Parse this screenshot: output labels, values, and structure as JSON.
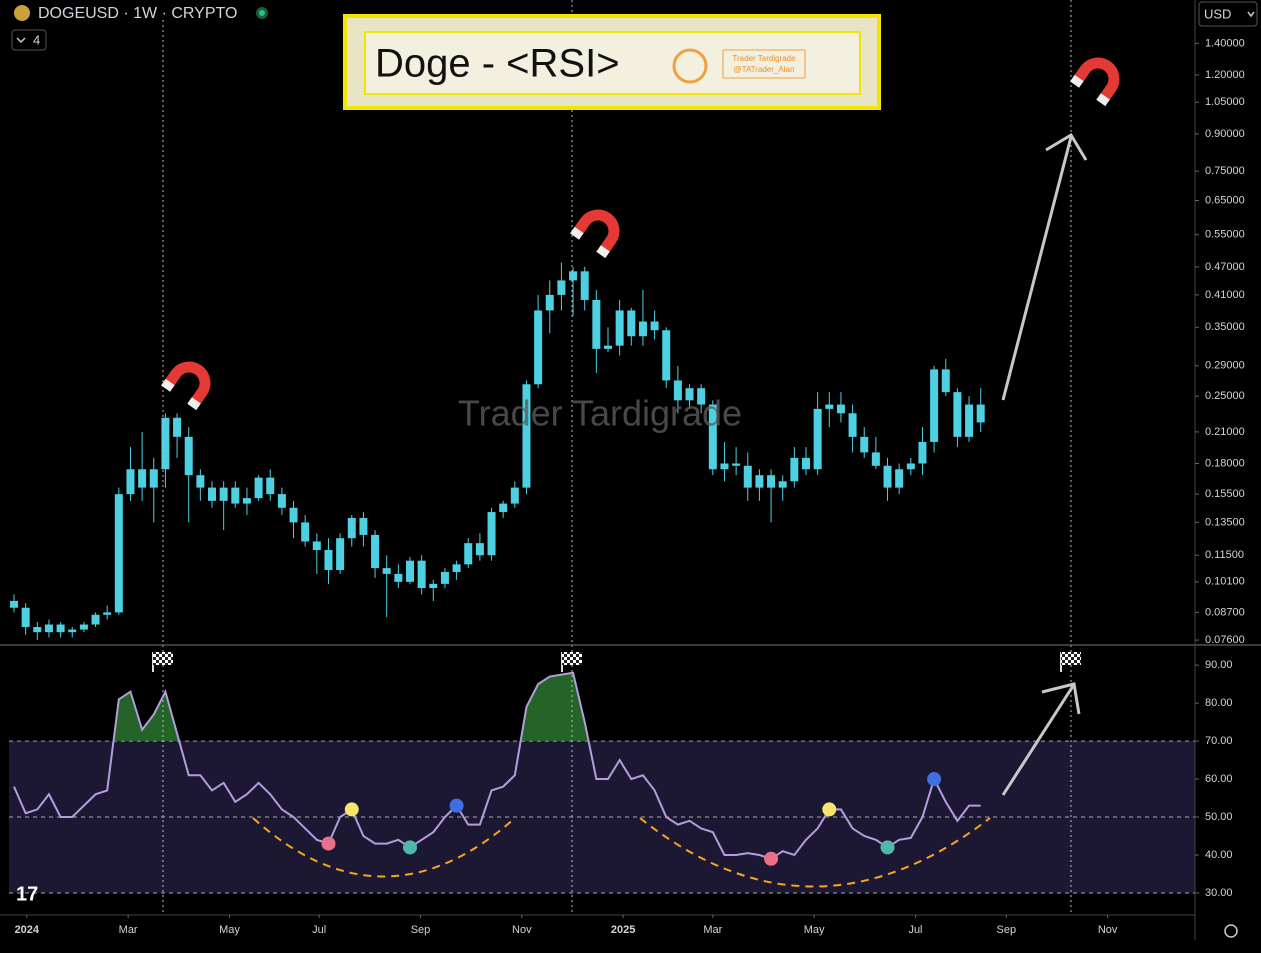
{
  "header": {
    "symbol": "DOGEUSD · 1W · CRYPTO",
    "indicator_count": 4,
    "currency": "USD"
  },
  "banner": {
    "title": "Doge - <RSI>",
    "badge_line1": "Trader Tardigrade",
    "badge_line2": "@TATrader_Alan"
  },
  "watermark": "Trader Tardigrade",
  "chart_data": [
    {
      "type": "candlestick",
      "log_scale": true,
      "color": "#4dd0e1",
      "xlim": [
        -0.43,
        101.4
      ],
      "ylim": [
        0.0742,
        1.73
      ],
      "yticks": [
        {
          "value": 1.4,
          "label": "1.40000"
        },
        {
          "value": 1.2,
          "label": "1.20000"
        },
        {
          "value": 1.05,
          "label": "1.05000"
        },
        {
          "value": 0.9,
          "label": "0.90000"
        },
        {
          "value": 0.75,
          "label": "0.75000"
        },
        {
          "value": 0.65,
          "label": "0.65000"
        },
        {
          "value": 0.55,
          "label": "0.55000"
        },
        {
          "value": 0.47,
          "label": "0.47000"
        },
        {
          "value": 0.41,
          "label": "0.41000"
        },
        {
          "value": 0.35,
          "label": "0.35000"
        },
        {
          "value": 0.29,
          "label": "0.29000"
        },
        {
          "value": 0.25,
          "label": "0.25000"
        },
        {
          "value": 0.21,
          "label": "0.21000"
        },
        {
          "value": 0.18,
          "label": "0.18000"
        },
        {
          "value": 0.155,
          "label": "0.15500"
        },
        {
          "value": 0.135,
          "label": "0.13500"
        },
        {
          "value": 0.115,
          "label": "0.11500"
        },
        {
          "value": 0.101,
          "label": "0.10100"
        },
        {
          "value": 0.087,
          "label": "0.08700"
        },
        {
          "value": 0.076,
          "label": "0.07600"
        }
      ],
      "open": [
        0.092,
        0.089,
        0.081,
        0.079,
        0.082,
        0.079,
        0.08,
        0.082,
        0.086,
        0.087,
        0.155,
        0.175,
        0.16,
        0.175,
        0.225,
        0.205,
        0.17,
        0.16,
        0.15,
        0.16,
        0.148,
        0.152,
        0.168,
        0.155,
        0.145,
        0.135,
        0.123,
        0.118,
        0.107,
        0.125,
        0.138,
        0.127,
        0.108,
        0.105,
        0.101,
        0.112,
        0.098,
        0.1,
        0.106,
        0.11,
        0.122,
        0.115,
        0.142,
        0.148,
        0.16,
        0.265,
        0.38,
        0.41,
        0.44,
        0.46,
        0.4,
        0.315,
        0.32,
        0.38,
        0.335,
        0.36,
        0.345,
        0.27,
        0.245,
        0.26,
        0.24,
        0.175,
        0.18,
        0.178,
        0.16,
        0.17,
        0.16,
        0.165,
        0.185,
        0.175,
        0.235,
        0.24,
        0.23,
        0.205,
        0.19,
        0.178,
        0.16,
        0.175,
        0.18,
        0.2,
        0.285,
        0.255,
        0.205,
        0.24
      ],
      "high": [
        0.095,
        0.091,
        0.083,
        0.084,
        0.083,
        0.081,
        0.083,
        0.087,
        0.09,
        0.16,
        0.195,
        0.21,
        0.185,
        0.23,
        0.23,
        0.215,
        0.175,
        0.165,
        0.165,
        0.165,
        0.16,
        0.17,
        0.175,
        0.16,
        0.15,
        0.14,
        0.128,
        0.125,
        0.128,
        0.14,
        0.142,
        0.13,
        0.115,
        0.11,
        0.114,
        0.115,
        0.102,
        0.108,
        0.112,
        0.125,
        0.128,
        0.145,
        0.15,
        0.165,
        0.27,
        0.41,
        0.44,
        0.48,
        0.47,
        0.47,
        0.42,
        0.35,
        0.4,
        0.385,
        0.42,
        0.38,
        0.35,
        0.29,
        0.265,
        0.265,
        0.245,
        0.2,
        0.195,
        0.19,
        0.175,
        0.175,
        0.17,
        0.195,
        0.195,
        0.255,
        0.255,
        0.255,
        0.24,
        0.215,
        0.205,
        0.185,
        0.18,
        0.185,
        0.215,
        0.29,
        0.3,
        0.26,
        0.25,
        0.26
      ],
      "low": [
        0.087,
        0.078,
        0.076,
        0.077,
        0.077,
        0.077,
        0.079,
        0.081,
        0.084,
        0.086,
        0.15,
        0.15,
        0.135,
        0.16,
        0.185,
        0.135,
        0.15,
        0.145,
        0.13,
        0.145,
        0.14,
        0.15,
        0.15,
        0.14,
        0.125,
        0.12,
        0.105,
        0.1,
        0.105,
        0.12,
        0.12,
        0.103,
        0.085,
        0.098,
        0.1,
        0.095,
        0.092,
        0.098,
        0.102,
        0.108,
        0.112,
        0.112,
        0.138,
        0.145,
        0.155,
        0.26,
        0.34,
        0.38,
        0.37,
        0.38,
        0.28,
        0.31,
        0.305,
        0.32,
        0.32,
        0.33,
        0.26,
        0.23,
        0.235,
        0.23,
        0.17,
        0.165,
        0.17,
        0.15,
        0.15,
        0.135,
        0.15,
        0.16,
        0.17,
        0.17,
        0.215,
        0.22,
        0.19,
        0.185,
        0.175,
        0.15,
        0.155,
        0.17,
        0.17,
        0.19,
        0.25,
        0.195,
        0.2,
        0.21
      ],
      "close": [
        0.089,
        0.081,
        0.079,
        0.082,
        0.079,
        0.08,
        0.082,
        0.086,
        0.087,
        0.155,
        0.175,
        0.16,
        0.175,
        0.225,
        0.205,
        0.17,
        0.16,
        0.15,
        0.16,
        0.148,
        0.152,
        0.168,
        0.155,
        0.145,
        0.135,
        0.123,
        0.118,
        0.107,
        0.125,
        0.138,
        0.127,
        0.108,
        0.105,
        0.101,
        0.112,
        0.098,
        0.1,
        0.106,
        0.11,
        0.122,
        0.115,
        0.142,
        0.148,
        0.16,
        0.265,
        0.38,
        0.41,
        0.44,
        0.46,
        0.4,
        0.315,
        0.32,
        0.38,
        0.335,
        0.36,
        0.345,
        0.27,
        0.245,
        0.26,
        0.24,
        0.175,
        0.18,
        0.178,
        0.16,
        0.17,
        0.16,
        0.165,
        0.185,
        0.175,
        0.235,
        0.24,
        0.23,
        0.205,
        0.19,
        0.178,
        0.16,
        0.175,
        0.18,
        0.2,
        0.285,
        0.255,
        0.205,
        0.24,
        0.22
      ]
    },
    {
      "type": "line",
      "color": "#b39ddb",
      "xlim": [
        -0.43,
        101.4
      ],
      "ylim": [
        24.2,
        95.3
      ],
      "yticks": [
        {
          "value": 90,
          "label": "90.00"
        },
        {
          "value": 80,
          "label": "80.00"
        },
        {
          "value": 70,
          "label": "70.00"
        },
        {
          "value": 60,
          "label": "60.00"
        },
        {
          "value": 50,
          "label": "50.00"
        },
        {
          "value": 40,
          "label": "40.00"
        },
        {
          "value": 30,
          "label": "30.00"
        }
      ],
      "xticks": [
        {
          "value": 1.1,
          "label": "2024"
        },
        {
          "value": 9.8,
          "label": "Mar"
        },
        {
          "value": 18.5,
          "label": "May"
        },
        {
          "value": 26.2,
          "label": "Jul"
        },
        {
          "value": 34.9,
          "label": "Sep"
        },
        {
          "value": 43.6,
          "label": "Nov"
        },
        {
          "value": 52.3,
          "label": "2025"
        },
        {
          "value": 60.0,
          "label": "Mar"
        },
        {
          "value": 68.7,
          "label": "May"
        },
        {
          "value": 77.4,
          "label": "Jul"
        },
        {
          "value": 85.2,
          "label": "Sep"
        },
        {
          "value": 93.9,
          "label": "Nov"
        }
      ],
      "levels": [
        70,
        50,
        30
      ],
      "band": [
        30,
        70
      ],
      "band_color": "#1c1833",
      "overbought_color": "#2e7d32",
      "values": [
        58,
        51,
        52,
        56,
        50,
        50,
        53,
        56,
        57,
        81,
        83,
        73,
        77,
        83,
        72,
        61,
        61,
        57,
        59,
        54,
        56,
        59,
        56,
        52,
        50,
        47,
        44,
        43,
        50,
        52,
        45,
        43,
        43,
        44,
        42,
        44,
        46,
        50,
        53,
        48,
        48,
        57,
        58,
        61,
        79,
        85,
        87,
        87.5,
        88,
        75,
        60,
        60,
        65,
        60,
        61,
        57,
        50,
        48,
        49,
        47,
        46,
        40,
        40,
        40.5,
        40,
        39,
        41,
        40,
        44,
        47,
        52,
        52,
        47,
        45,
        44,
        42,
        44,
        44.5,
        50,
        60,
        54,
        49,
        53,
        53
      ],
      "signals": [
        {
          "index": 27,
          "color": "#e8708a"
        },
        {
          "index": 29,
          "color": "#f7e46b"
        },
        {
          "index": 34,
          "color": "#4fb8a8"
        },
        {
          "index": 38,
          "color": "#3d6fe0"
        },
        {
          "index": 65,
          "color": "#e8708a"
        },
        {
          "index": 70,
          "color": "#f7e46b"
        },
        {
          "index": 75,
          "color": "#4fb8a8"
        },
        {
          "index": 79,
          "color": "#3d6fe0"
        }
      ]
    }
  ]
}
